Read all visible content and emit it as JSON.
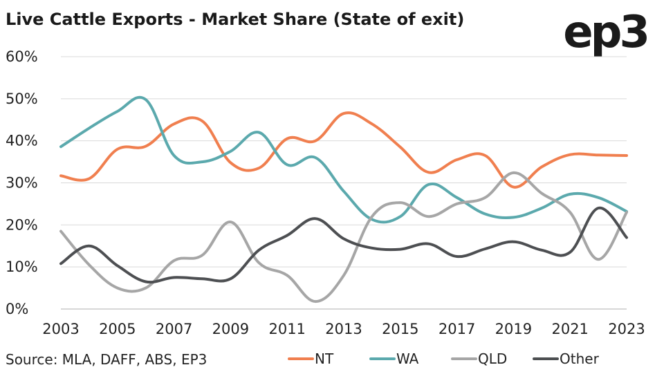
{
  "chart_data": {
    "type": "line",
    "title": "Live Cattle Exports - Market Share (State of exit)",
    "source": "Source: MLA, DAFF, ABS, EP3",
    "x": [
      2003,
      2004,
      2005,
      2006,
      2007,
      2008,
      2009,
      2010,
      2011,
      2012,
      2013,
      2014,
      2015,
      2016,
      2017,
      2018,
      2019,
      2020,
      2021,
      2022,
      2023
    ],
    "xticks": [
      "2003",
      "2005",
      "2007",
      "2009",
      "2011",
      "2013",
      "2015",
      "2017",
      "2019",
      "2021",
      "2023"
    ],
    "yticks": [
      "0%",
      "10%",
      "20%",
      "30%",
      "40%",
      "50%",
      "60%"
    ],
    "ylim": [
      0,
      60
    ],
    "xlim": [
      2003,
      2023
    ],
    "grid": "horizontal",
    "legend_position": "bottom",
    "series": [
      {
        "name": "NT",
        "color": "#f07f4f",
        "values": [
          31.7,
          31.0,
          38.0,
          38.7,
          44.0,
          44.7,
          34.8,
          33.5,
          40.5,
          40.0,
          46.5,
          44.0,
          38.5,
          32.5,
          35.5,
          36.5,
          29.0,
          33.8,
          36.7,
          36.6,
          36.5
        ]
      },
      {
        "name": "WA",
        "color": "#5ba9ad",
        "values": [
          38.6,
          43.0,
          47.0,
          49.8,
          36.5,
          35.0,
          37.5,
          42.0,
          34.3,
          36.0,
          28.0,
          21.3,
          22.0,
          29.6,
          26.5,
          22.6,
          21.8,
          24.0,
          27.3,
          26.5,
          23.2
        ]
      },
      {
        "name": "QLD",
        "color": "#a6a6a6",
        "values": [
          18.5,
          10.5,
          5.0,
          5.0,
          11.5,
          12.8,
          20.7,
          11.0,
          8.0,
          1.8,
          8.0,
          22.0,
          25.3,
          22.0,
          25.0,
          26.5,
          32.4,
          27.5,
          23.0,
          11.8,
          23.0
        ]
      },
      {
        "name": "Other",
        "color": "#4d4f52",
        "values": [
          10.8,
          15.0,
          10.3,
          6.5,
          7.5,
          7.2,
          7.2,
          14.0,
          17.5,
          21.5,
          16.7,
          14.5,
          14.2,
          15.5,
          12.5,
          14.3,
          16.0,
          14.0,
          13.5,
          24.0,
          17.0
        ]
      }
    ]
  },
  "brand_logo": "ep3"
}
